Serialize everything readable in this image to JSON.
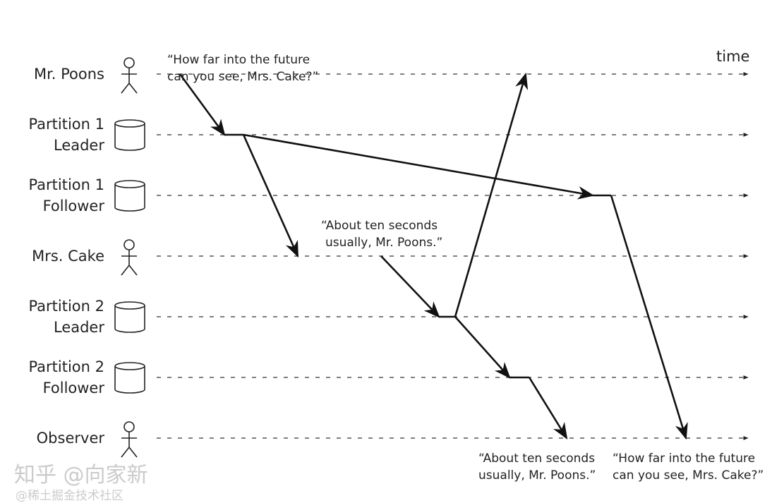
{
  "lanes": [
    {
      "label": "Mr. Poons",
      "icon": "person"
    },
    {
      "label": "Partition 1\nLeader",
      "icon": "database"
    },
    {
      "label": "Partition 1\nFollower",
      "icon": "database"
    },
    {
      "label": "Mrs. Cake",
      "icon": "person"
    },
    {
      "label": "Partition 2\nLeader",
      "icon": "database"
    },
    {
      "label": "Partition 2\nFollower",
      "icon": "database"
    },
    {
      "label": "Observer",
      "icon": "person"
    }
  ],
  "time_label": "time",
  "quotes": {
    "poons_question": [
      "“How far into the future",
      "can you see, Mrs. Cake?”"
    ],
    "cake_answer": [
      "“About ten seconds",
      "usually, Mr. Poons.”"
    ],
    "observer_answer": [
      "“About ten seconds",
      "usually, Mr. Poons.”"
    ],
    "observer_question": [
      "“How far into the future",
      "can you see, Mrs. Cake?”"
    ]
  },
  "watermark": {
    "main": "知乎 @向家新",
    "sub": "@稀土掘金技术社区"
  }
}
